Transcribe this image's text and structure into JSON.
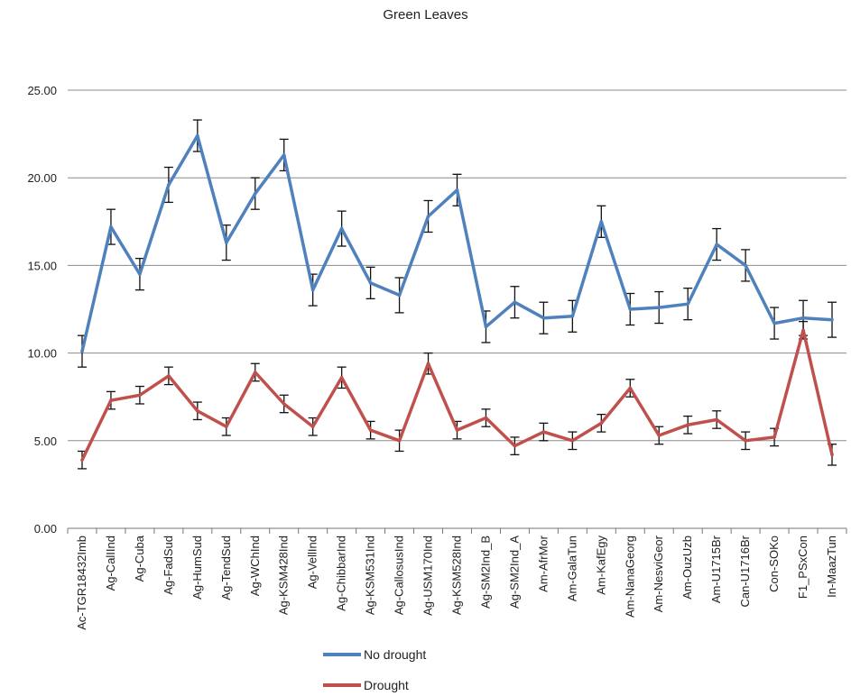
{
  "chart_data": {
    "type": "line",
    "title": "Green Leaves",
    "categories": [
      "Ac-TGR18432Imb",
      "Ag-CalIInd",
      "Ag-Cuba",
      "Ag-FadSud",
      "Ag-HumSud",
      "Ag-TendSud",
      "Ag-WChInd",
      "Ag-KSM428Ind",
      "Ag-VellInd",
      "Ag-ChibbarInd",
      "Ag-KSM531Ind",
      "Ag-CallosusInd",
      "Ag-USM170Ind",
      "Ag-KSM528Ind",
      "Ag-SM2Ind_B",
      "Ag-SM2Ind_A",
      "Am-AfrMor",
      "Am-GalaTun",
      "Am-KafEgy",
      "Am-NanaGeorg",
      "Am-NesviGeor",
      "Am-OuzUzb",
      "Am-U1715Br",
      "Can-U1716Br",
      "Con-SOKo",
      "F1_PSxCon",
      "In-MaazTun"
    ],
    "ylim": [
      0,
      25
    ],
    "yticks": [
      "0.00",
      "5.00",
      "10.00",
      "15.00",
      "20.00",
      "25.00"
    ],
    "grid": true,
    "legend_position": "bottom",
    "series": [
      {
        "name": "No drought",
        "color": "#4f81bd",
        "values": [
          10.1,
          17.2,
          14.5,
          19.6,
          22.4,
          16.3,
          19.1,
          21.3,
          13.6,
          17.1,
          14.0,
          13.3,
          17.8,
          19.3,
          11.5,
          12.9,
          12.0,
          12.1,
          17.5,
          12.5,
          12.6,
          12.8,
          16.2,
          15.0,
          11.7,
          12.0,
          11.9
        ],
        "errors": [
          0.9,
          1.0,
          0.9,
          1.0,
          0.9,
          1.0,
          0.9,
          0.9,
          0.9,
          1.0,
          0.9,
          1.0,
          0.9,
          0.9,
          0.9,
          0.9,
          0.9,
          0.9,
          0.9,
          0.9,
          0.9,
          0.9,
          0.9,
          0.9,
          0.9,
          1.0,
          1.0
        ]
      },
      {
        "name": "Drought",
        "color": "#c0504d",
        "values": [
          3.9,
          7.3,
          7.6,
          8.7,
          6.7,
          5.8,
          8.9,
          7.1,
          5.8,
          8.6,
          5.6,
          5.0,
          9.4,
          5.6,
          6.3,
          4.7,
          5.5,
          5.0,
          6.0,
          8.0,
          5.3,
          5.9,
          6.2,
          5.0,
          5.2,
          11.3,
          4.2
        ],
        "errors": [
          0.5,
          0.5,
          0.5,
          0.5,
          0.5,
          0.5,
          0.5,
          0.5,
          0.5,
          0.6,
          0.5,
          0.6,
          0.6,
          0.5,
          0.5,
          0.5,
          0.5,
          0.5,
          0.5,
          0.5,
          0.5,
          0.5,
          0.5,
          0.5,
          0.5,
          0.5,
          0.6
        ]
      }
    ]
  }
}
